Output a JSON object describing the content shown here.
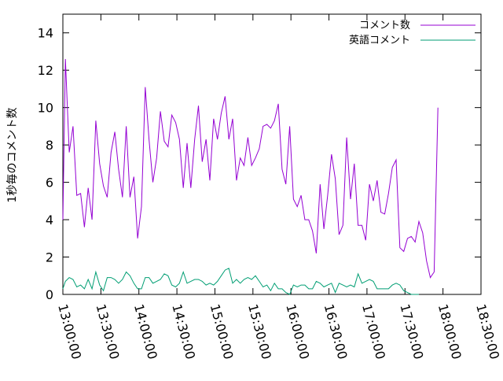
{
  "chart_data": {
    "type": "line",
    "title": "",
    "xlabel": "",
    "ylabel": "1秒毎のコメント数",
    "x_ticks": [
      "13:00:00",
      "13:30:00",
      "14:00:00",
      "14:30:00",
      "15:00:00",
      "15:30:00",
      "16:00:00",
      "16:30:00",
      "17:00:00",
      "17:30:00",
      "18:00:00",
      "18:30:00"
    ],
    "x_range": [
      "13:00:00",
      "18:30:00"
    ],
    "y_ticks": [
      0,
      2,
      4,
      6,
      8,
      10,
      12,
      14
    ],
    "ylim": [
      0,
      15
    ],
    "legend": "top-right",
    "grid": false,
    "series": [
      {
        "name": "コメント数",
        "color": "#9400d3",
        "points": [
          [
            "13:00:00",
            4.0
          ],
          [
            "13:02:00",
            12.6
          ],
          [
            "13:05:00",
            7.6
          ],
          [
            "13:08:00",
            9.0
          ],
          [
            "13:11:00",
            5.3
          ],
          [
            "13:14:00",
            5.4
          ],
          [
            "13:17:00",
            3.6
          ],
          [
            "13:20:00",
            5.7
          ],
          [
            "13:23:00",
            4.0
          ],
          [
            "13:26:00",
            9.3
          ],
          [
            "13:29:00",
            7.0
          ],
          [
            "13:32:00",
            5.8
          ],
          [
            "13:35:00",
            5.2
          ],
          [
            "13:38:00",
            7.6
          ],
          [
            "13:41:00",
            8.7
          ],
          [
            "13:44:00",
            6.7
          ],
          [
            "13:47:00",
            5.2
          ],
          [
            "13:50:00",
            9.0
          ],
          [
            "13:53:00",
            5.2
          ],
          [
            "13:56:00",
            6.3
          ],
          [
            "13:59:00",
            3.0
          ],
          [
            "14:02:00",
            4.7
          ],
          [
            "14:05:00",
            11.1
          ],
          [
            "14:08:00",
            8.3
          ],
          [
            "14:11:00",
            6.0
          ],
          [
            "14:14:00",
            7.3
          ],
          [
            "14:17:00",
            9.8
          ],
          [
            "14:20:00",
            8.2
          ],
          [
            "14:23:00",
            7.9
          ],
          [
            "14:26:00",
            9.6
          ],
          [
            "14:29:00",
            9.2
          ],
          [
            "14:32:00",
            8.3
          ],
          [
            "14:35:00",
            5.7
          ],
          [
            "14:38:00",
            8.1
          ],
          [
            "14:41:00",
            5.7
          ],
          [
            "14:44:00",
            8.3
          ],
          [
            "14:47:00",
            10.1
          ],
          [
            "14:50:00",
            7.1
          ],
          [
            "14:53:00",
            8.3
          ],
          [
            "14:56:00",
            6.1
          ],
          [
            "14:59:00",
            9.4
          ],
          [
            "15:02:00",
            8.3
          ],
          [
            "15:05:00",
            9.7
          ],
          [
            "15:08:00",
            10.6
          ],
          [
            "15:11:00",
            8.3
          ],
          [
            "15:14:00",
            9.4
          ],
          [
            "15:17:00",
            6.1
          ],
          [
            "15:20:00",
            7.3
          ],
          [
            "15:23:00",
            6.9
          ],
          [
            "15:26:00",
            8.4
          ],
          [
            "15:29:00",
            6.9
          ],
          [
            "15:32:00",
            7.3
          ],
          [
            "15:35:00",
            7.8
          ],
          [
            "15:38:00",
            9.0
          ],
          [
            "15:41:00",
            9.1
          ],
          [
            "15:44:00",
            8.9
          ],
          [
            "15:47:00",
            9.3
          ],
          [
            "15:50:00",
            10.2
          ],
          [
            "15:53:00",
            6.7
          ],
          [
            "15:56:00",
            5.9
          ],
          [
            "15:59:00",
            9.0
          ],
          [
            "16:02:00",
            5.1
          ],
          [
            "16:05:00",
            4.7
          ],
          [
            "16:08:00",
            5.3
          ],
          [
            "16:11:00",
            4.0
          ],
          [
            "16:14:00",
            4.0
          ],
          [
            "16:17:00",
            3.4
          ],
          [
            "16:20:00",
            2.2
          ],
          [
            "16:23:00",
            5.9
          ],
          [
            "16:26:00",
            3.5
          ],
          [
            "16:29:00",
            5.3
          ],
          [
            "16:32:00",
            7.5
          ],
          [
            "16:35:00",
            6.2
          ],
          [
            "16:38:00",
            3.2
          ],
          [
            "16:41:00",
            3.7
          ],
          [
            "16:44:00",
            8.4
          ],
          [
            "16:47:00",
            5.1
          ],
          [
            "16:50:00",
            7.0
          ],
          [
            "16:53:00",
            3.7
          ],
          [
            "16:56:00",
            3.7
          ],
          [
            "16:59:00",
            2.9
          ],
          [
            "17:02:00",
            5.9
          ],
          [
            "17:05:00",
            5.0
          ],
          [
            "17:08:00",
            6.1
          ],
          [
            "17:11:00",
            4.4
          ],
          [
            "17:14:00",
            4.3
          ],
          [
            "17:17:00",
            5.4
          ],
          [
            "17:20:00",
            6.8
          ],
          [
            "17:23:00",
            7.2
          ],
          [
            "17:26:00",
            2.5
          ],
          [
            "17:29:00",
            2.3
          ],
          [
            "17:32:00",
            3.0
          ],
          [
            "17:35:00",
            3.1
          ],
          [
            "17:38:00",
            2.8
          ],
          [
            "17:41:00",
            3.9
          ],
          [
            "17:44:00",
            3.3
          ],
          [
            "17:47:00",
            1.8
          ],
          [
            "17:50:00",
            0.9
          ],
          [
            "17:53:00",
            1.2
          ],
          [
            "17:56:00",
            10.0
          ]
        ]
      },
      {
        "name": "英語コメント",
        "color": "#009e73",
        "points": [
          [
            "13:00:00",
            0.3
          ],
          [
            "13:02:00",
            0.7
          ],
          [
            "13:05:00",
            0.9
          ],
          [
            "13:08:00",
            0.8
          ],
          [
            "13:11:00",
            0.4
          ],
          [
            "13:14:00",
            0.5
          ],
          [
            "13:17:00",
            0.3
          ],
          [
            "13:20:00",
            0.8
          ],
          [
            "13:23:00",
            0.3
          ],
          [
            "13:26:00",
            1.2
          ],
          [
            "13:29:00",
            0.5
          ],
          [
            "13:32:00",
            0.2
          ],
          [
            "13:35:00",
            0.9
          ],
          [
            "13:38:00",
            0.9
          ],
          [
            "13:41:00",
            0.8
          ],
          [
            "13:44:00",
            0.6
          ],
          [
            "13:47:00",
            0.8
          ],
          [
            "13:50:00",
            1.2
          ],
          [
            "13:53:00",
            1.0
          ],
          [
            "13:56:00",
            0.6
          ],
          [
            "13:59:00",
            0.3
          ],
          [
            "14:02:00",
            0.3
          ],
          [
            "14:05:00",
            0.9
          ],
          [
            "14:08:00",
            0.9
          ],
          [
            "14:11:00",
            0.6
          ],
          [
            "14:14:00",
            0.7
          ],
          [
            "14:17:00",
            0.8
          ],
          [
            "14:20:00",
            1.1
          ],
          [
            "14:23:00",
            1.0
          ],
          [
            "14:26:00",
            0.5
          ],
          [
            "14:29:00",
            0.4
          ],
          [
            "14:32:00",
            0.6
          ],
          [
            "14:35:00",
            1.2
          ],
          [
            "14:38:00",
            0.6
          ],
          [
            "14:41:00",
            0.7
          ],
          [
            "14:44:00",
            0.8
          ],
          [
            "14:47:00",
            0.8
          ],
          [
            "14:50:00",
            0.7
          ],
          [
            "14:53:00",
            0.5
          ],
          [
            "14:56:00",
            0.6
          ],
          [
            "14:59:00",
            0.5
          ],
          [
            "15:02:00",
            0.7
          ],
          [
            "15:05:00",
            1.0
          ],
          [
            "15:08:00",
            1.3
          ],
          [
            "15:11:00",
            1.4
          ],
          [
            "15:14:00",
            0.6
          ],
          [
            "15:17:00",
            0.8
          ],
          [
            "15:20:00",
            0.6
          ],
          [
            "15:23:00",
            0.8
          ],
          [
            "15:26:00",
            0.9
          ],
          [
            "15:29:00",
            0.8
          ],
          [
            "15:32:00",
            1.0
          ],
          [
            "15:35:00",
            0.7
          ],
          [
            "15:38:00",
            0.4
          ],
          [
            "15:41:00",
            0.5
          ],
          [
            "15:44:00",
            0.2
          ],
          [
            "15:47:00",
            0.6
          ],
          [
            "15:50:00",
            0.3
          ],
          [
            "15:53:00",
            0.3
          ],
          [
            "15:56:00",
            0.1
          ],
          [
            "15:59:00",
            0.0
          ],
          [
            "16:02:00",
            0.5
          ],
          [
            "16:05:00",
            0.4
          ],
          [
            "16:08:00",
            0.5
          ],
          [
            "16:11:00",
            0.5
          ],
          [
            "16:14:00",
            0.3
          ],
          [
            "16:17:00",
            0.3
          ],
          [
            "16:20:00",
            0.7
          ],
          [
            "16:23:00",
            0.6
          ],
          [
            "16:26:00",
            0.4
          ],
          [
            "16:29:00",
            0.5
          ],
          [
            "16:32:00",
            0.6
          ],
          [
            "16:35:00",
            0.1
          ],
          [
            "16:38:00",
            0.6
          ],
          [
            "16:41:00",
            0.5
          ],
          [
            "16:44:00",
            0.4
          ],
          [
            "16:47:00",
            0.5
          ],
          [
            "16:50:00",
            0.4
          ],
          [
            "16:53:00",
            1.1
          ],
          [
            "16:56:00",
            0.6
          ],
          [
            "16:59:00",
            0.7
          ],
          [
            "17:02:00",
            0.8
          ],
          [
            "17:05:00",
            0.7
          ],
          [
            "17:08:00",
            0.3
          ],
          [
            "17:11:00",
            0.3
          ],
          [
            "17:14:00",
            0.3
          ],
          [
            "17:17:00",
            0.3
          ],
          [
            "17:20:00",
            0.5
          ],
          [
            "17:23:00",
            0.6
          ],
          [
            "17:26:00",
            0.5
          ],
          [
            "17:29:00",
            0.2
          ],
          [
            "17:32:00",
            0.1
          ],
          [
            "17:35:00",
            0.0
          ],
          [
            "17:38:00",
            0.0
          ],
          [
            "17:41:00",
            0.0
          ]
        ]
      }
    ]
  }
}
